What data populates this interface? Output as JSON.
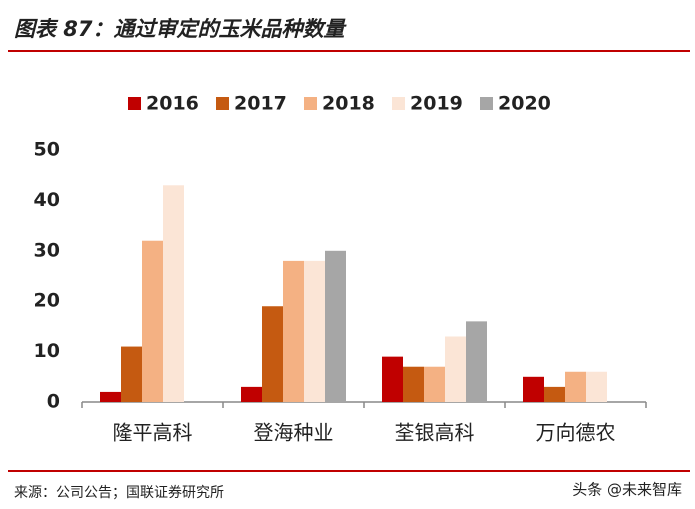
{
  "chart_data": {
    "type": "bar",
    "title": "图表 87：通过审定的玉米品种数量",
    "categories": [
      "隆平高科",
      "登海种业",
      "荃银高科",
      "万向德农"
    ],
    "series": [
      {
        "name": "2016",
        "color": "#c00000",
        "values": [
          2,
          3,
          9,
          5
        ]
      },
      {
        "name": "2017",
        "color": "#c55a11",
        "values": [
          11,
          19,
          7,
          3
        ]
      },
      {
        "name": "2018",
        "color": "#f4b183",
        "values": [
          32,
          28,
          7,
          6
        ]
      },
      {
        "name": "2019",
        "color": "#fbe5d6",
        "values": [
          43,
          28,
          13,
          6
        ]
      },
      {
        "name": "2020",
        "color": "#a6a6a6",
        "values": [
          null,
          30,
          16,
          null
        ]
      }
    ],
    "ylim": [
      0,
      50
    ],
    "yticks": [
      0,
      10,
      20,
      30,
      40,
      50
    ],
    "source": "来源：公司公告；国联证券研究所",
    "watermark": "头条 @未来智库"
  }
}
